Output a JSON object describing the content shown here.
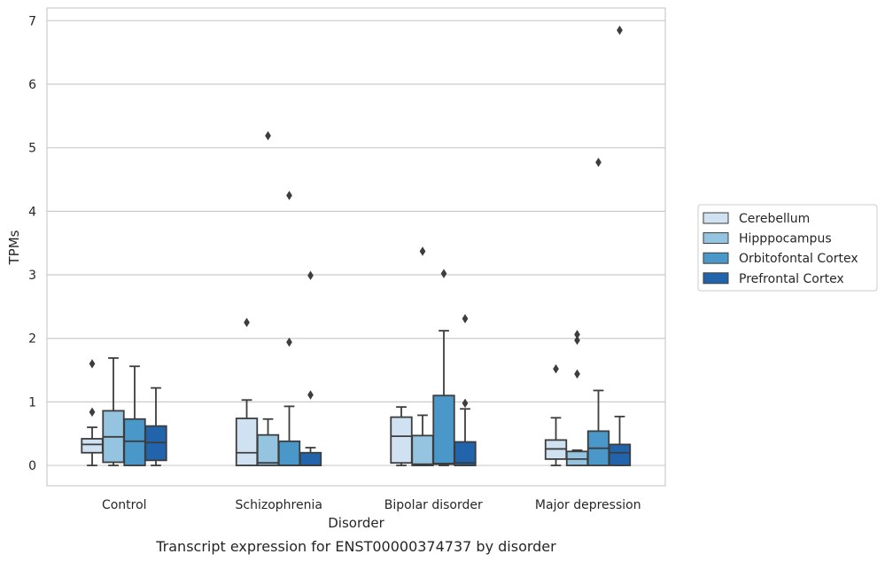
{
  "caption": "Transcript expression for ENST00000374737 by disorder",
  "chart_data": {
    "type": "box",
    "xlabel": "Disorder",
    "ylabel": "TPMs",
    "ylim": [
      -0.32,
      7.2
    ],
    "yticks": [
      0,
      1,
      2,
      3,
      4,
      5,
      6,
      7
    ],
    "grid": "horizontal",
    "legend_position": "right",
    "categories": [
      "Control",
      "Schizophrenia",
      "Bipolar disorder",
      "Major depression"
    ],
    "series": [
      {
        "name": "Cerebellum",
        "color": "#d0e1f2",
        "boxes": [
          {
            "whisker_low": 0.0,
            "q1": 0.2,
            "median": 0.33,
            "q3": 0.42,
            "whisker_high": 0.6,
            "outliers": [
              0.84,
              1.6
            ]
          },
          {
            "whisker_low": 0.0,
            "q1": 0.0,
            "median": 0.2,
            "q3": 0.74,
            "whisker_high": 1.03,
            "outliers": [
              2.25
            ]
          },
          {
            "whisker_low": 0.0,
            "q1": 0.04,
            "median": 0.46,
            "q3": 0.76,
            "whisker_high": 0.92,
            "outliers": []
          },
          {
            "whisker_low": 0.0,
            "q1": 0.1,
            "median": 0.26,
            "q3": 0.4,
            "whisker_high": 0.75,
            "outliers": [
              1.52
            ]
          }
        ]
      },
      {
        "name": "Hipppocampus",
        "color": "#94c4df",
        "boxes": [
          {
            "whisker_low": 0.0,
            "q1": 0.05,
            "median": 0.45,
            "q3": 0.86,
            "whisker_high": 1.69,
            "outliers": []
          },
          {
            "whisker_low": 0.0,
            "q1": 0.0,
            "median": 0.04,
            "q3": 0.48,
            "whisker_high": 0.73,
            "outliers": [
              5.19
            ]
          },
          {
            "whisker_low": 0.0,
            "q1": 0.0,
            "median": 0.02,
            "q3": 0.47,
            "whisker_high": 0.79,
            "outliers": [
              3.37
            ]
          },
          {
            "whisker_low": 0.0,
            "q1": 0.0,
            "median": 0.1,
            "q3": 0.22,
            "whisker_high": 0.24,
            "outliers": [
              1.44,
              1.97,
              2.06
            ]
          }
        ]
      },
      {
        "name": "Orbitofontal Cortex",
        "color": "#4a98c9",
        "boxes": [
          {
            "whisker_low": 0.0,
            "q1": 0.0,
            "median": 0.38,
            "q3": 0.73,
            "whisker_high": 1.56,
            "outliers": []
          },
          {
            "whisker_low": 0.0,
            "q1": 0.0,
            "median": 0.0,
            "q3": 0.38,
            "whisker_high": 0.93,
            "outliers": [
              1.94,
              4.25
            ]
          },
          {
            "whisker_low": 0.0,
            "q1": 0.02,
            "median": 0.03,
            "q3": 1.1,
            "whisker_high": 2.12,
            "outliers": [
              3.02
            ]
          },
          {
            "whisker_low": 0.0,
            "q1": 0.0,
            "median": 0.27,
            "q3": 0.54,
            "whisker_high": 1.18,
            "outliers": [
              4.77
            ]
          }
        ]
      },
      {
        "name": "Prefrontal Cortex",
        "color": "#2164ab",
        "boxes": [
          {
            "whisker_low": 0.0,
            "q1": 0.08,
            "median": 0.36,
            "q3": 0.62,
            "whisker_high": 1.22,
            "outliers": []
          },
          {
            "whisker_low": 0.0,
            "q1": 0.0,
            "median": 0.0,
            "q3": 0.2,
            "whisker_high": 0.28,
            "outliers": [
              1.11,
              2.99
            ]
          },
          {
            "whisker_low": 0.0,
            "q1": 0.0,
            "median": 0.04,
            "q3": 0.37,
            "whisker_high": 0.89,
            "outliers": [
              0.98,
              2.31
            ]
          },
          {
            "whisker_low": 0.0,
            "q1": 0.0,
            "median": 0.2,
            "q3": 0.33,
            "whisker_high": 0.77,
            "outliers": [
              6.85
            ]
          }
        ]
      }
    ]
  }
}
